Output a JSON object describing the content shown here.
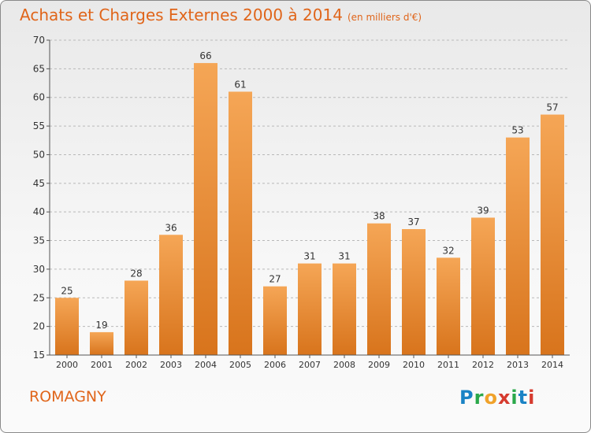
{
  "title": "Achats et Charges Externes 2000 à 2014",
  "unit_note": "(en milliers d'€)",
  "commune": "ROMAGNY",
  "logo": {
    "letters": [
      "P",
      "r",
      "o",
      "x",
      "i",
      "t",
      "i"
    ],
    "colors": [
      "#1a83c5",
      "#2aa84a",
      "#f0a22a",
      "#d63b2f",
      "#2aa84a",
      "#1a83c5",
      "#d63b2f"
    ]
  },
  "colors": {
    "accent": "#e0651a",
    "bar_light": "#f5a656",
    "bar_dark": "#d8741c"
  },
  "chart_data": {
    "type": "bar",
    "categories": [
      "2000",
      "2001",
      "2002",
      "2003",
      "2004",
      "2005",
      "2006",
      "2007",
      "2008",
      "2009",
      "2010",
      "2011",
      "2012",
      "2013",
      "2014"
    ],
    "values": [
      25,
      19,
      28,
      36,
      66,
      61,
      27,
      31,
      31,
      38,
      37,
      32,
      39,
      53,
      57
    ],
    "ylim": [
      15,
      70
    ],
    "yticks": [
      15,
      20,
      25,
      30,
      35,
      40,
      45,
      50,
      55,
      60,
      65,
      70
    ],
    "grid": "y-dashed",
    "legend": "none"
  }
}
